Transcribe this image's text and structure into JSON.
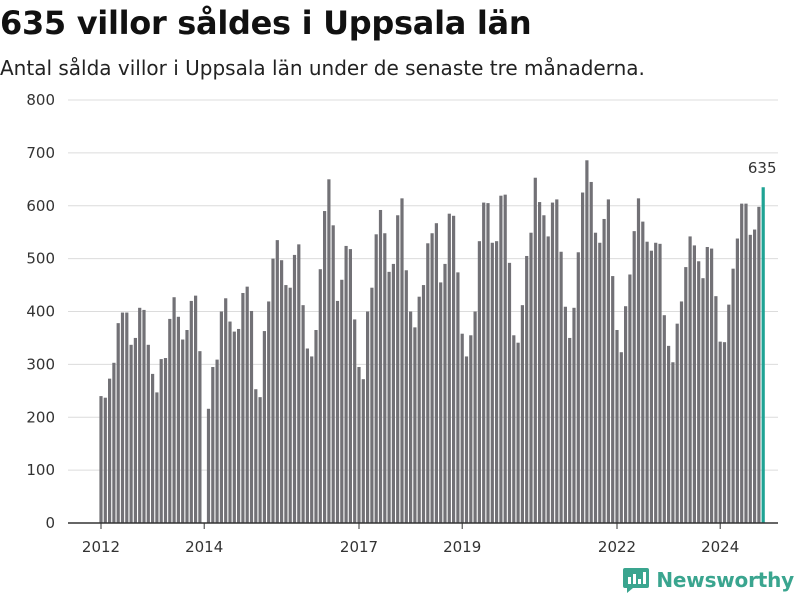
{
  "title": "635 villor såldes i Uppsala län",
  "subtitle": "Antal sålda villor i Uppsala län under de senaste tre månaderna.",
  "brand": {
    "name": "Newsworthy",
    "icon": "newsworthy-logo-icon",
    "color": "#3aa58f"
  },
  "colors": {
    "bar": "#727176",
    "highlight": "#1fa394",
    "grid": "#dcdcdc",
    "axis": "#333333"
  },
  "chart_data": {
    "type": "bar",
    "title": "635 villor såldes i Uppsala län",
    "subtitle": "Antal sålda villor i Uppsala län under de senaste tre månaderna.",
    "xlabel": "",
    "ylabel": "",
    "ylim": [
      0,
      800
    ],
    "yticks": [
      0,
      100,
      200,
      300,
      400,
      500,
      600,
      700,
      800
    ],
    "xticks": [
      "2012",
      "2014",
      "2017",
      "2019",
      "2022",
      "2024"
    ],
    "grid": true,
    "highlight_label": "635",
    "values": [
      240,
      237,
      273,
      303,
      378,
      398,
      398,
      337,
      350,
      407,
      403,
      337,
      282,
      247,
      310,
      312,
      386,
      427,
      390,
      347,
      365,
      420,
      430,
      325,
      null,
      216,
      295,
      309,
      400,
      425,
      381,
      362,
      367,
      435,
      447,
      401,
      253,
      238,
      363,
      419,
      500,
      535,
      497,
      450,
      445,
      507,
      527,
      412,
      330,
      315,
      365,
      480,
      590,
      650,
      563,
      420,
      460,
      524,
      518,
      385,
      295,
      272,
      400,
      445,
      546,
      592,
      548,
      475,
      490,
      582,
      614,
      478,
      400,
      370,
      428,
      450,
      529,
      548,
      567,
      455,
      490,
      585,
      581,
      474,
      358,
      315,
      355,
      400,
      533,
      606,
      605,
      530,
      533,
      619,
      621,
      492,
      355,
      341,
      412,
      505,
      549,
      653,
      607,
      582,
      542,
      606,
      612,
      513,
      409,
      350,
      407,
      512,
      625,
      686,
      645,
      549,
      530,
      575,
      612,
      467,
      365,
      323,
      410,
      470,
      552,
      614,
      570,
      532,
      515,
      530,
      528,
      393,
      335,
      304,
      377,
      419,
      484,
      542,
      525,
      495,
      463,
      522,
      519,
      429,
      343,
      342,
      413,
      481,
      538,
      604,
      604,
      545,
      555,
      598,
      635
    ]
  }
}
